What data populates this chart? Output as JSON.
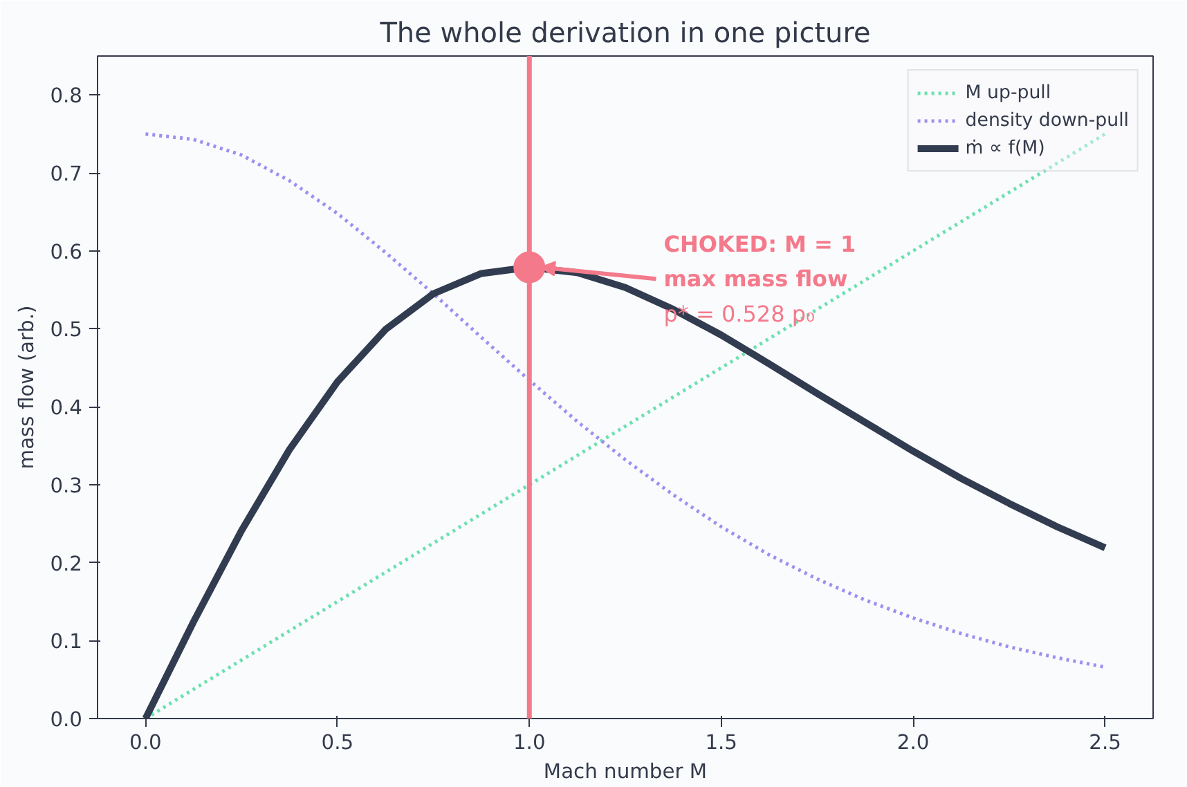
{
  "chart_data": {
    "type": "line",
    "title": "The whole derivation in one picture",
    "xlabel": "Mach number M",
    "ylabel": "mass flow (arb.)",
    "x": [
      0,
      0.125,
      0.25,
      0.375,
      0.5,
      0.625,
      0.75,
      0.875,
      1,
      1.125,
      1.25,
      1.375,
      1.5,
      1.625,
      1.75,
      1.875,
      2,
      2.125,
      2.25,
      2.375,
      2.5
    ],
    "series": [
      {
        "name": "M up-pull",
        "color": "#6ee0b0",
        "line_style": "dotted",
        "x": [
          0,
          2.5
        ],
        "values": [
          0,
          0.75
        ]
      },
      {
        "name": "density down-pull",
        "color": "#a08ef0",
        "line_style": "dotted",
        "values": [
          0.75,
          0.743,
          0.723,
          0.69,
          0.648,
          0.598,
          0.545,
          0.489,
          0.434,
          0.381,
          0.332,
          0.287,
          0.246,
          0.21,
          0.179,
          0.152,
          0.129,
          0.109,
          0.092,
          0.078,
          0.066
        ]
      },
      {
        "name": "ṁ ∝ f(M)",
        "color": "#323c50",
        "line_style": "solid",
        "values": [
          0,
          0.124,
          0.241,
          0.345,
          0.432,
          0.499,
          0.545,
          0.571,
          0.579,
          0.572,
          0.553,
          0.525,
          0.492,
          0.455,
          0.417,
          0.38,
          0.343,
          0.308,
          0.276,
          0.246,
          0.219
        ]
      }
    ],
    "ref_lines": [
      {
        "axis": "x",
        "value": 1,
        "label": null,
        "color": "#f47a8b"
      }
    ],
    "annotations": [
      {
        "text": "CHOKED: M = 1\nmax mass flow\np* = 0.528 p₀",
        "x": 1,
        "y": 0.579
      }
    ],
    "xlim": [
      -0.125,
      2.625
    ],
    "ylim": [
      0,
      0.85
    ],
    "xticks": [
      {
        "value": 0,
        "label": "0.0"
      },
      0.5,
      {
        "value": 1,
        "label": "1.0"
      },
      1.5,
      {
        "value": 2,
        "label": "2.0"
      },
      2.5
    ],
    "yticks": [
      {
        "value": 0,
        "label": "0.0"
      },
      0.1,
      0.2,
      0.3,
      0.4,
      0.5,
      0.6,
      0.7,
      0.8
    ],
    "grid": false,
    "legend": "top right",
    "marker": "none"
  }
}
